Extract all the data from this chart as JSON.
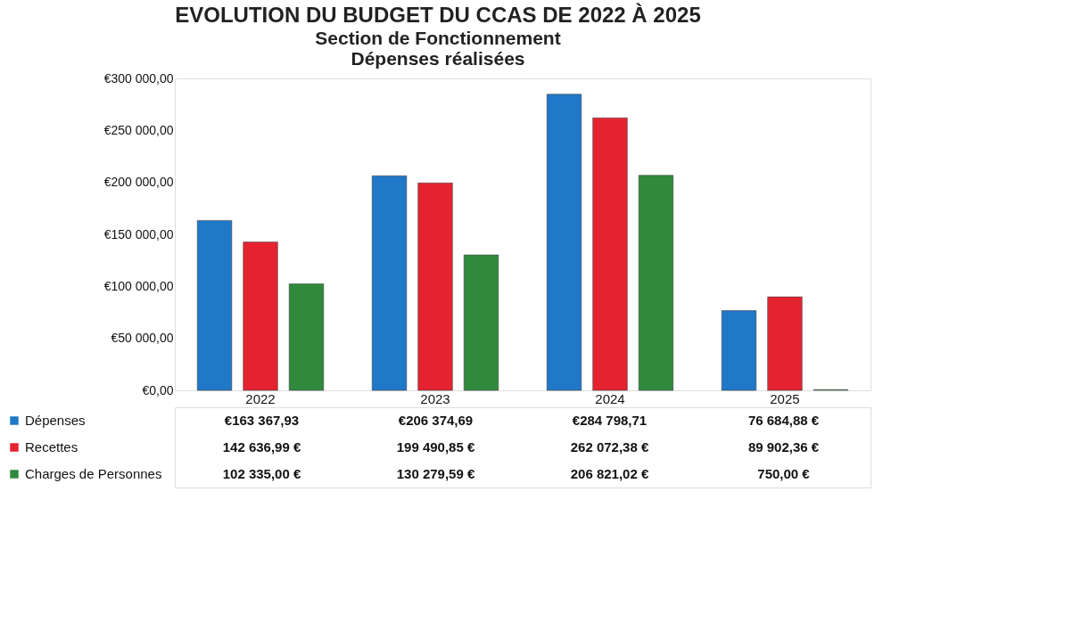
{
  "chart_data": {
    "type": "bar",
    "title": "EVOLUTION DU BUDGET DU CCAS  DE 2022 À 2025",
    "subtitle": "Section de Fonctionnement\nDépenses réalisées",
    "categories": [
      "2022",
      "2023",
      "2024",
      "2025"
    ],
    "series": [
      {
        "name": "Dépenses",
        "color": "#1f78c8",
        "values": [
          163367.93,
          206374.69,
          284798.71,
          76684.88
        ],
        "value_labels": [
          "€163 367,93",
          "€206 374,69",
          "€284 798,71",
          "76 684,88 €"
        ]
      },
      {
        "name": "Recettes",
        "color": "#e52330",
        "values": [
          142636.99,
          199490.85,
          262072.38,
          89902.36
        ],
        "value_labels": [
          "142 636,99 €",
          "199 490,85 €",
          "262 072,38 €",
          "89 902,36 €"
        ]
      },
      {
        "name": "Charges de Personnes",
        "color": "#2f8a3c",
        "values": [
          102335.0,
          130279.59,
          206821.02,
          750.0
        ],
        "value_labels": [
          "102 335,00 €",
          "130 279,59 €",
          "206 821,02 €",
          "750,00 €"
        ]
      }
    ],
    "ylim": [
      0,
      300000
    ],
    "yticks": [
      {
        "value": 0,
        "label": "€0,00"
      },
      {
        "value": 50000,
        "label": "€50 000,00"
      },
      {
        "value": 100000,
        "label": "€100 000,00"
      },
      {
        "value": 150000,
        "label": "€150 000,00"
      },
      {
        "value": 200000,
        "label": "€200 000,00"
      },
      {
        "value": 250000,
        "label": "€250 000,00"
      },
      {
        "value": 300000,
        "label": "€300 000,00"
      }
    ],
    "grid": false,
    "legend": "bottom left"
  }
}
